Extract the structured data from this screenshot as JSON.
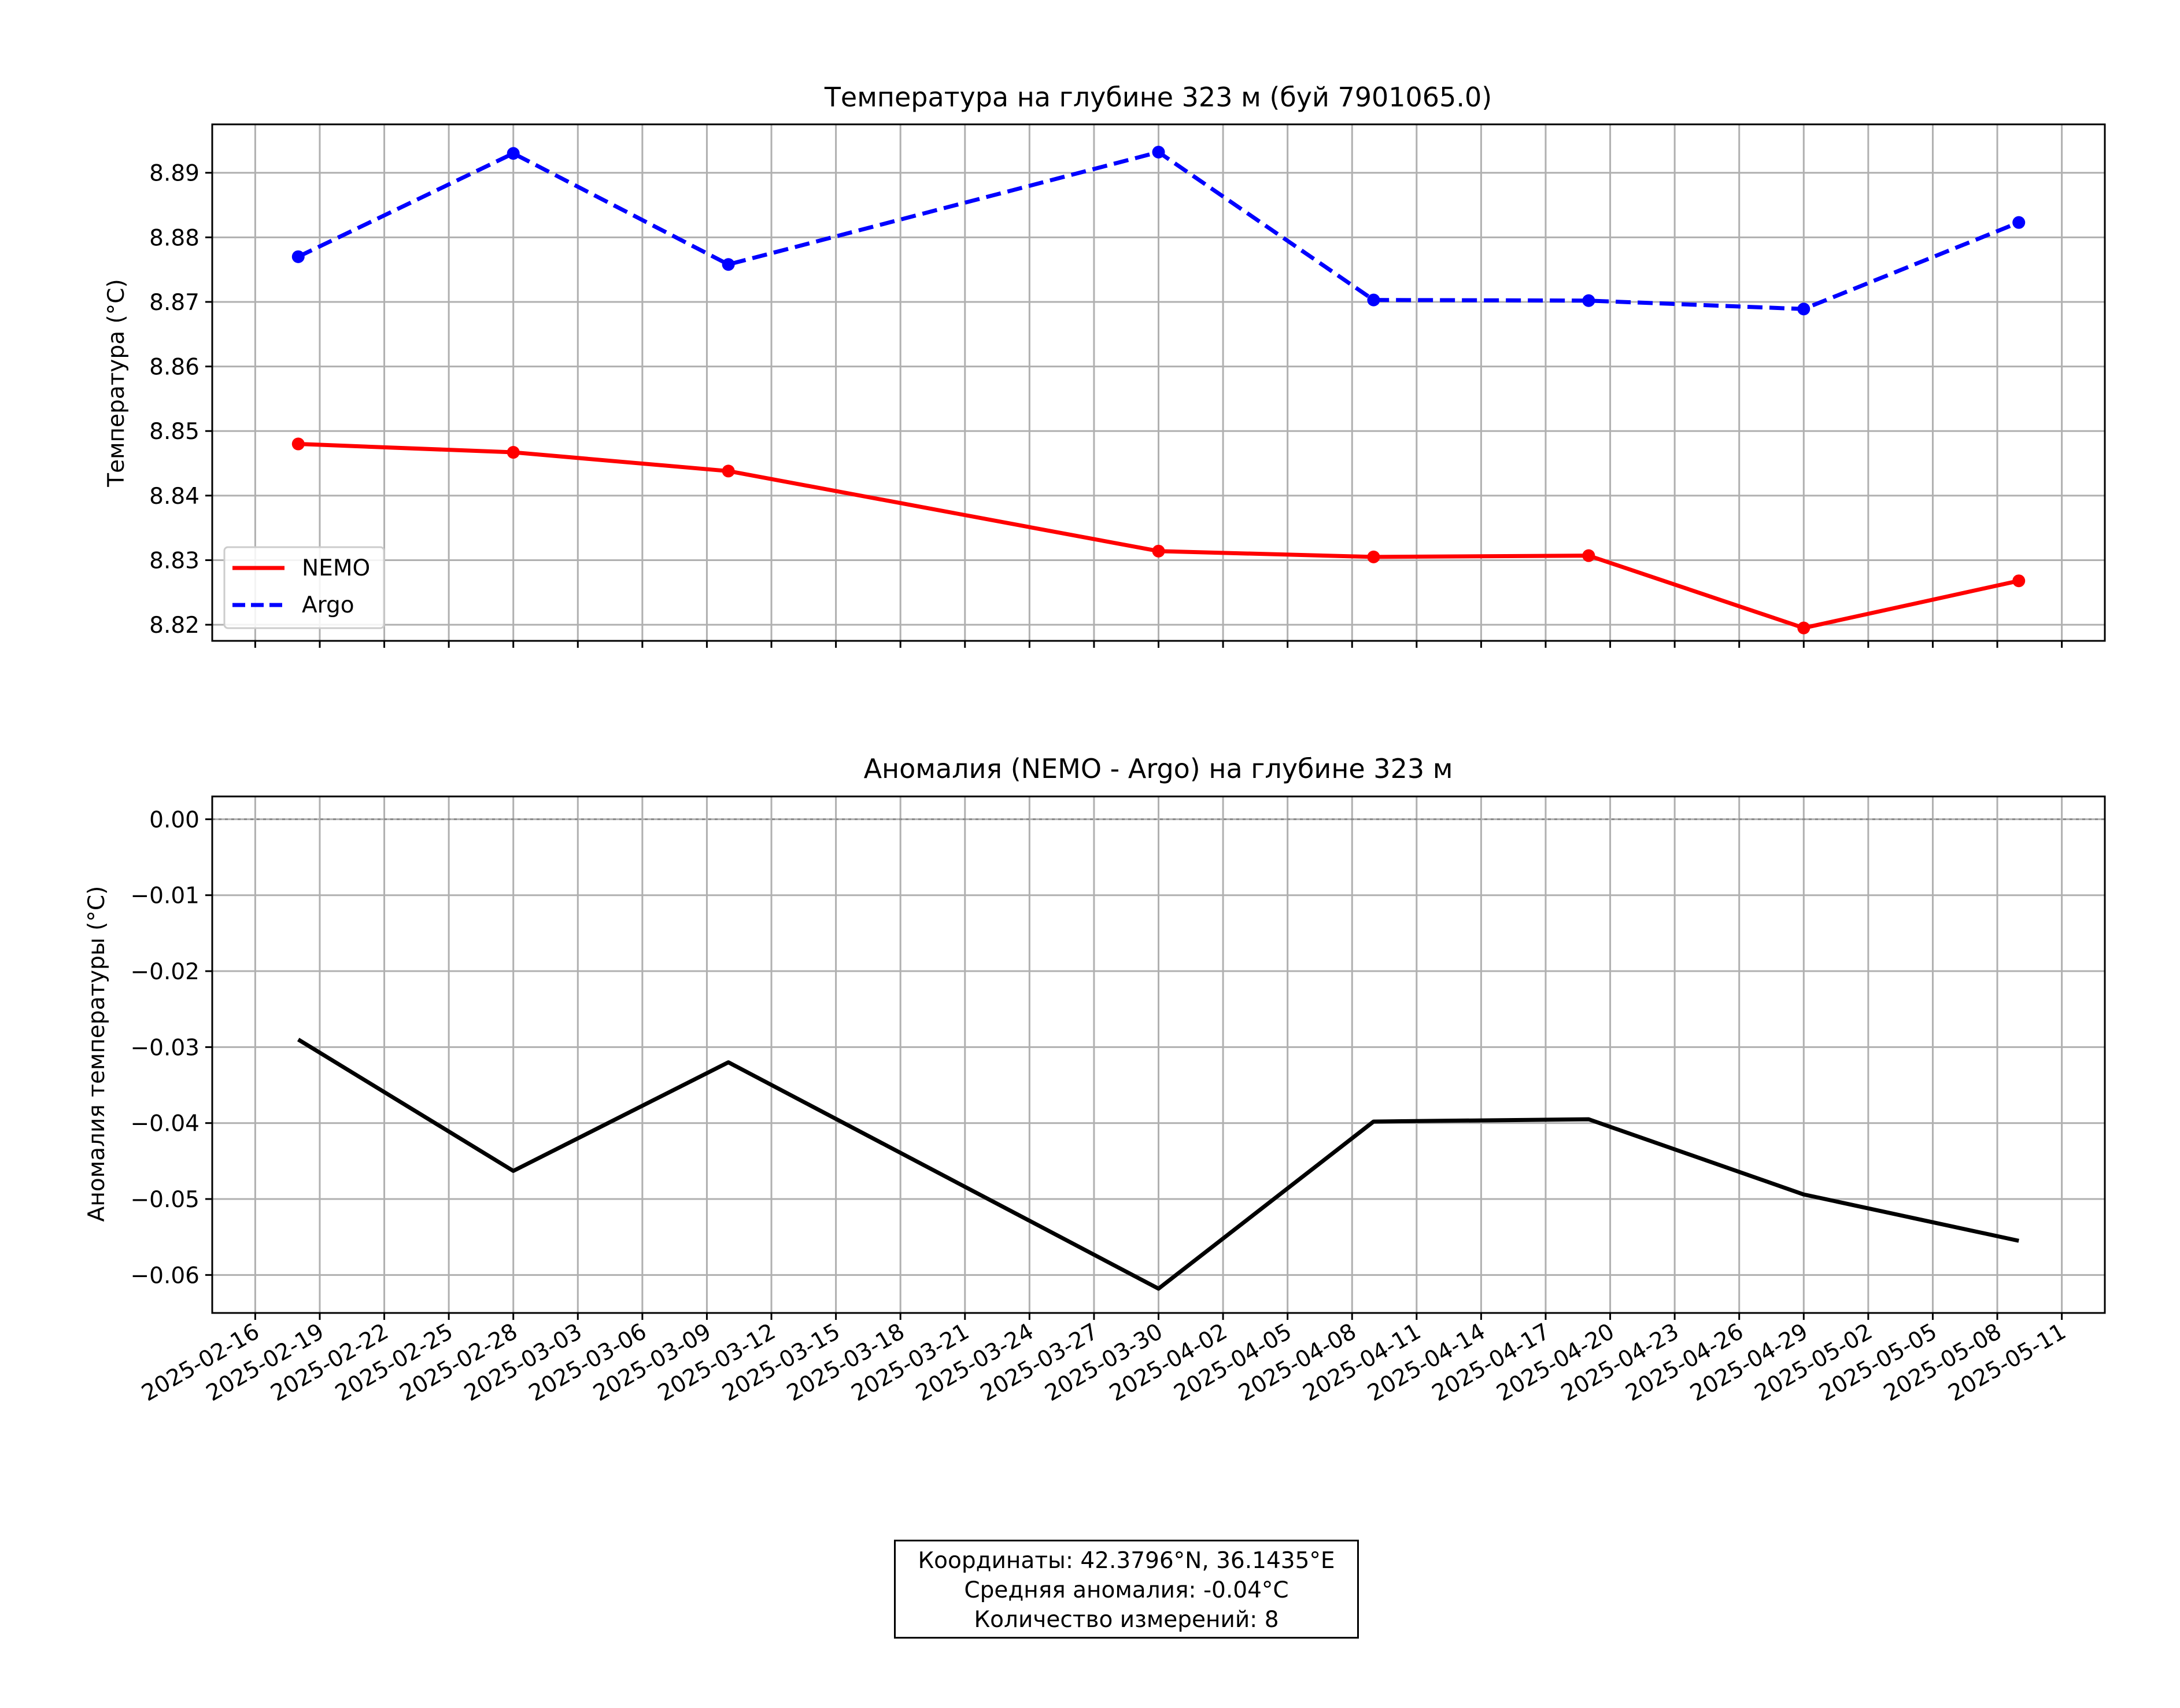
{
  "chart_data": [
    {
      "type": "line",
      "title": "Температура на глубине 323 м (буй 7901065.0)",
      "xlabel": "",
      "ylabel": "Температура (°C)",
      "x": [
        "2025-02-18",
        "2025-02-28",
        "2025-03-10",
        "2025-03-30",
        "2025-04-09",
        "2025-04-19",
        "2025-04-29",
        "2025-05-09"
      ],
      "ylim": [
        8.8175,
        8.8975
      ],
      "yticks": [
        8.82,
        8.83,
        8.84,
        8.85,
        8.86,
        8.87,
        8.88,
        8.89
      ],
      "ytick_labels": [
        "8.82",
        "8.83",
        "8.84",
        "8.85",
        "8.86",
        "8.87",
        "8.88",
        "8.89"
      ],
      "grid": true,
      "legend": "lower-left",
      "series": [
        {
          "name": "NEMO",
          "color": "#ff0000",
          "style": "solid",
          "values": [
            8.848,
            8.8467,
            8.8438,
            8.8314,
            8.8305,
            8.8307,
            8.8195,
            8.8268
          ]
        },
        {
          "name": "Argo",
          "color": "#0000ff",
          "style": "dashed",
          "values": [
            8.877,
            8.893,
            8.8758,
            8.8932,
            8.8703,
            8.8702,
            8.8689,
            8.8823
          ]
        }
      ]
    },
    {
      "type": "line",
      "title": "Аномалия (NEMO - Argo) на глубине 323 м",
      "xlabel": "",
      "ylabel": "Аномалия температуры (°C)",
      "x": [
        "2025-02-18",
        "2025-02-28",
        "2025-03-10",
        "2025-03-30",
        "2025-04-09",
        "2025-04-19",
        "2025-04-29",
        "2025-05-09"
      ],
      "ylim": [
        -0.065,
        0.003
      ],
      "yticks": [
        0.0,
        -0.01,
        -0.02,
        -0.03,
        -0.04,
        -0.05,
        -0.06
      ],
      "ytick_labels": [
        "0.00",
        "−0.01",
        "−0.02",
        "−0.03",
        "−0.04",
        "−0.05",
        "−0.06"
      ],
      "xlim": [
        "2025-02-14",
        "2025-05-13"
      ],
      "xticks": [
        "2025-02-16",
        "2025-02-19",
        "2025-02-22",
        "2025-02-25",
        "2025-02-28",
        "2025-03-03",
        "2025-03-06",
        "2025-03-09",
        "2025-03-12",
        "2025-03-15",
        "2025-03-18",
        "2025-03-21",
        "2025-03-24",
        "2025-03-27",
        "2025-03-30",
        "2025-04-02",
        "2025-04-05",
        "2025-04-08",
        "2025-04-11",
        "2025-04-14",
        "2025-04-17",
        "2025-04-20",
        "2025-04-23",
        "2025-04-26",
        "2025-04-29",
        "2025-05-02",
        "2025-05-05",
        "2025-05-08",
        "2025-05-11"
      ],
      "grid": true,
      "reference_line": 0.0,
      "series": [
        {
          "color": "#000000",
          "style": "solid",
          "values": [
            -0.029,
            -0.0463,
            -0.032,
            -0.0618,
            -0.0398,
            -0.0395,
            -0.0494,
            -0.0555
          ]
        }
      ]
    }
  ],
  "info_box": {
    "line1": "Координаты: 42.3796°N, 36.1435°E",
    "line2": "Средняя аномалия: -0.04°C",
    "line3": "Количество измерений: 8"
  }
}
